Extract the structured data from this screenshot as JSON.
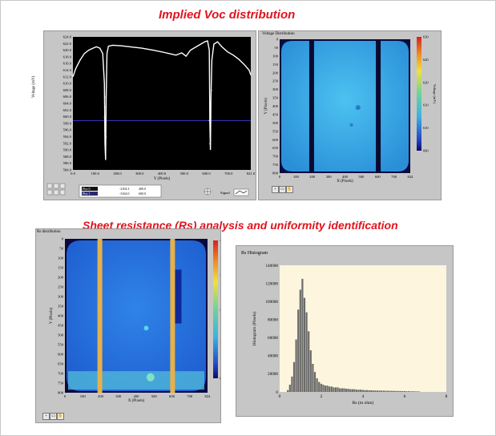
{
  "titles": {
    "voc": "Implied Voc distribution",
    "rs": "Sheet resistance (Rs) analysis and uniformity identification"
  },
  "voc_line": {
    "ylabel": "Voltage (mV)",
    "xlabel": "Y (Pixels)",
    "yticks": [
      "624.0",
      "622.0",
      "620.0",
      "618.0",
      "616.0",
      "614.0",
      "612.0",
      "610.0",
      "608.0",
      "606.0",
      "604.0",
      "602.0",
      "600.0",
      "598.0",
      "596.0",
      "594.0",
      "592.0",
      "590.0",
      "588.0",
      "586.0",
      "584.0"
    ],
    "xticks": [
      "0.0",
      "100.0",
      "200.0",
      "300.0",
      "400.0",
      "500.0",
      "600.0",
      "700.0",
      "821.0"
    ],
    "legend": [
      {
        "name": "Plot 0",
        "a": "-2104.3",
        "b": "400.0"
      },
      {
        "name": "Plot 1",
        "a": "-3164.0",
        "b": "600.0"
      }
    ],
    "signal_label": "Signal"
  },
  "voc_map": {
    "title": "Voltage Distribution",
    "ylabel": "Y (Pixels)",
    "xlabel": "X (Pixels)",
    "yticks": [
      "0",
      "50",
      "100",
      "150",
      "200",
      "250",
      "300",
      "350",
      "400",
      "450",
      "500",
      "550",
      "600",
      "650",
      "700",
      "750",
      "800"
    ],
    "xticks": [
      "0",
      "100",
      "200",
      "300",
      "400",
      "500",
      "600",
      "700",
      "824"
    ],
    "cbar_ticks": [
      "630",
      "620",
      "620",
      "610",
      "610",
      "600"
    ],
    "cbar_label": "Voltage (mV)"
  },
  "rs_map": {
    "title": "Rs distribution",
    "ylabel": "Y (Pixels)",
    "xlabel": "X (Pixels)",
    "yticks": [
      "0",
      "50",
      "100",
      "150",
      "200",
      "250",
      "300",
      "350",
      "400",
      "450",
      "500",
      "550",
      "600",
      "650",
      "700",
      "750",
      "800"
    ],
    "xticks": [
      "0",
      "100",
      "200",
      "300",
      "400",
      "500",
      "600",
      "700",
      "824"
    ],
    "cbar_ticks": [
      "4",
      "3",
      "2",
      "1",
      "0"
    ],
    "cbar_label": "Rs (mohm)"
  },
  "chart_data": {
    "type": "bar",
    "title": "Rs Histogram",
    "xlabel": "Rs (m ohm)",
    "ylabel": "Histogram (Pixels)",
    "xlim": [
      0,
      8
    ],
    "ylim": [
      0,
      140000
    ],
    "yticks": [
      "140000",
      "120000",
      "100000",
      "80000",
      "60000",
      "40000",
      "20000",
      "0"
    ],
    "xticks": [
      "0",
      "2",
      "4",
      "6",
      "8"
    ],
    "bin_width": 0.1,
    "x": [
      0.4,
      0.5,
      0.6,
      0.7,
      0.8,
      0.9,
      1.0,
      1.1,
      1.2,
      1.3,
      1.4,
      1.5,
      1.6,
      1.7,
      1.8,
      1.9,
      2.0,
      2.1,
      2.2,
      2.3,
      2.4,
      2.5,
      2.6,
      2.7,
      2.8,
      2.9,
      3.0,
      3.1,
      3.2,
      3.3,
      3.4,
      3.5,
      3.6,
      3.7,
      3.8,
      3.9,
      4.0,
      4.1,
      4.2,
      4.3,
      4.4,
      4.5,
      4.6,
      4.7,
      4.8,
      4.9,
      5.0,
      5.1,
      5.2,
      5.3,
      5.4,
      5.5,
      5.6,
      5.7,
      5.8,
      5.9,
      6.0,
      6.1,
      6.2,
      6.3,
      6.4,
      6.5,
      6.6,
      6.7
    ],
    "values": [
      2000,
      8000,
      17000,
      33000,
      58000,
      91000,
      113000,
      125000,
      104000,
      88000,
      67000,
      46000,
      31000,
      22000,
      15000,
      11000,
      9000,
      8000,
      7000,
      7000,
      6000,
      6000,
      5000,
      5000,
      5000,
      4000,
      4000,
      4000,
      3500,
      3500,
      3000,
      3000,
      3000,
      2500,
      2500,
      2500,
      2200,
      2000,
      2000,
      1800,
      1800,
      1600,
      1600,
      1500,
      1500,
      1400,
      1400,
      1300,
      1300,
      1200,
      1200,
      1100,
      1100,
      1000,
      1000,
      900,
      900,
      800,
      800,
      700,
      700,
      600,
      600,
      500
    ]
  },
  "colors": {
    "title": "#e0141e",
    "panel": "#c6c6c6",
    "hist_bg": "#fdf5dd",
    "hist_bar": "#6b6b6b"
  }
}
